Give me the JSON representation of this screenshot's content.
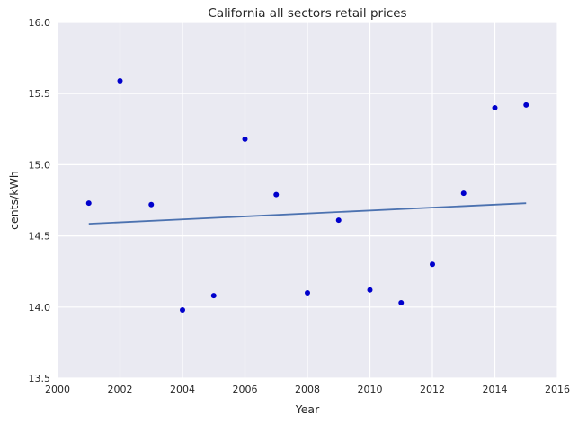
{
  "chart_data": {
    "type": "scatter",
    "title": "California   all sectors retail prices",
    "xlabel": "Year",
    "ylabel": "cents/kWh",
    "xlim": [
      2000,
      2016
    ],
    "ylim": [
      13.5,
      16.0
    ],
    "xticks": [
      2000,
      2002,
      2004,
      2006,
      2008,
      2010,
      2012,
      2014,
      2016
    ],
    "yticks": [
      13.5,
      14.0,
      14.5,
      15.0,
      15.5,
      16.0
    ],
    "ytick_labels": [
      "13.5",
      "14.0",
      "14.5",
      "15.0",
      "15.5",
      "16.0"
    ],
    "grid": true,
    "series": [
      {
        "type": "scatter",
        "color": "#0000cc",
        "x": [
          2001,
          2002,
          2003,
          2004,
          2005,
          2006,
          2007,
          2008,
          2009,
          2010,
          2011,
          2012,
          2013,
          2014,
          2015
        ],
        "y": [
          14.73,
          15.59,
          14.72,
          13.98,
          14.08,
          15.18,
          14.79,
          14.1,
          14.61,
          14.12,
          14.03,
          14.3,
          14.8,
          15.4,
          15.42
        ]
      },
      {
        "type": "line",
        "color": "#4c72b0",
        "x": [
          2001,
          2015
        ],
        "y": [
          14.585,
          14.73
        ]
      }
    ],
    "colors": {
      "plot_background": "#eaeaf2",
      "grid": "#ffffff"
    }
  }
}
